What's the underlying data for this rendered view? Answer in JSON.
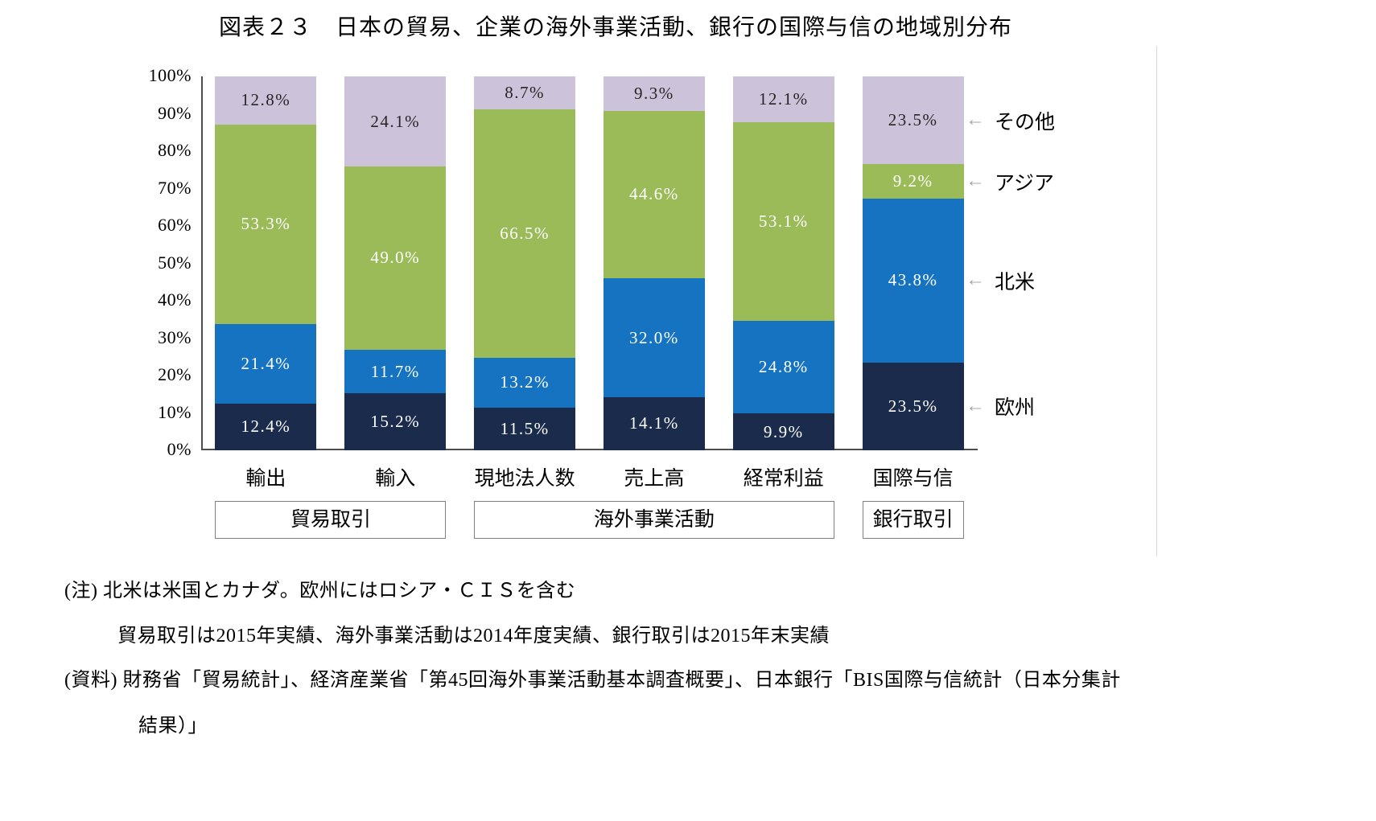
{
  "title": "図表２３　日本の貿易、企業の海外事業活動、銀行の国際与信の地域別分布",
  "chart_data": {
    "type": "bar",
    "stacked": true,
    "percent_stacked": true,
    "unit": "%",
    "title": "図表２３　日本の貿易、企業の海外事業活動、銀行の国際与信の地域別分布",
    "categories": [
      "輸出",
      "輸入",
      "現地法人数",
      "売上高",
      "経常利益",
      "国際与信"
    ],
    "series": [
      {
        "name": "欧州",
        "color": "#1b2b4c",
        "label_color": "#ffffff",
        "values": [
          12.4,
          15.2,
          11.5,
          14.1,
          9.9,
          23.5
        ]
      },
      {
        "name": "北米",
        "color": "#1673c2",
        "label_color": "#ffffff",
        "values": [
          21.4,
          11.7,
          13.2,
          32.0,
          24.8,
          43.8
        ]
      },
      {
        "name": "アジア",
        "color": "#9bba58",
        "label_color": "#ffffff",
        "values": [
          53.3,
          49.0,
          66.5,
          44.6,
          53.1,
          9.2
        ]
      },
      {
        "name": "その他",
        "color": "#ccc2da",
        "label_color": "#262626",
        "values": [
          12.8,
          24.1,
          8.7,
          9.3,
          12.1,
          23.5
        ]
      }
    ],
    "y_axis": {
      "min": 0,
      "max": 100,
      "step": 10,
      "tick_suffix": "%"
    },
    "grid": false,
    "legend_position": "right",
    "legend_order": [
      "その他",
      "アジア",
      "北米",
      "欧州"
    ],
    "groups": [
      {
        "label": "貿易取引",
        "from": 0,
        "to": 1
      },
      {
        "label": "海外事業活動",
        "from": 2,
        "to": 4
      },
      {
        "label": "銀行取引",
        "from": 5,
        "to": 5
      }
    ]
  },
  "notes": {
    "line1": "(注) 北米は米国とカナダ。欧州にはロシア・ＣＩＳを含む",
    "line2": "貿易取引は2015年実績、海外事業活動は2014年度実績、銀行取引は2015年末実績",
    "line3": "(資料) 財務省「貿易統計」、経済産業省「第45回海外事業活動基本調査概要」、日本銀行「BIS国際与信統計（日本分集計",
    "line4": "結果）」"
  }
}
